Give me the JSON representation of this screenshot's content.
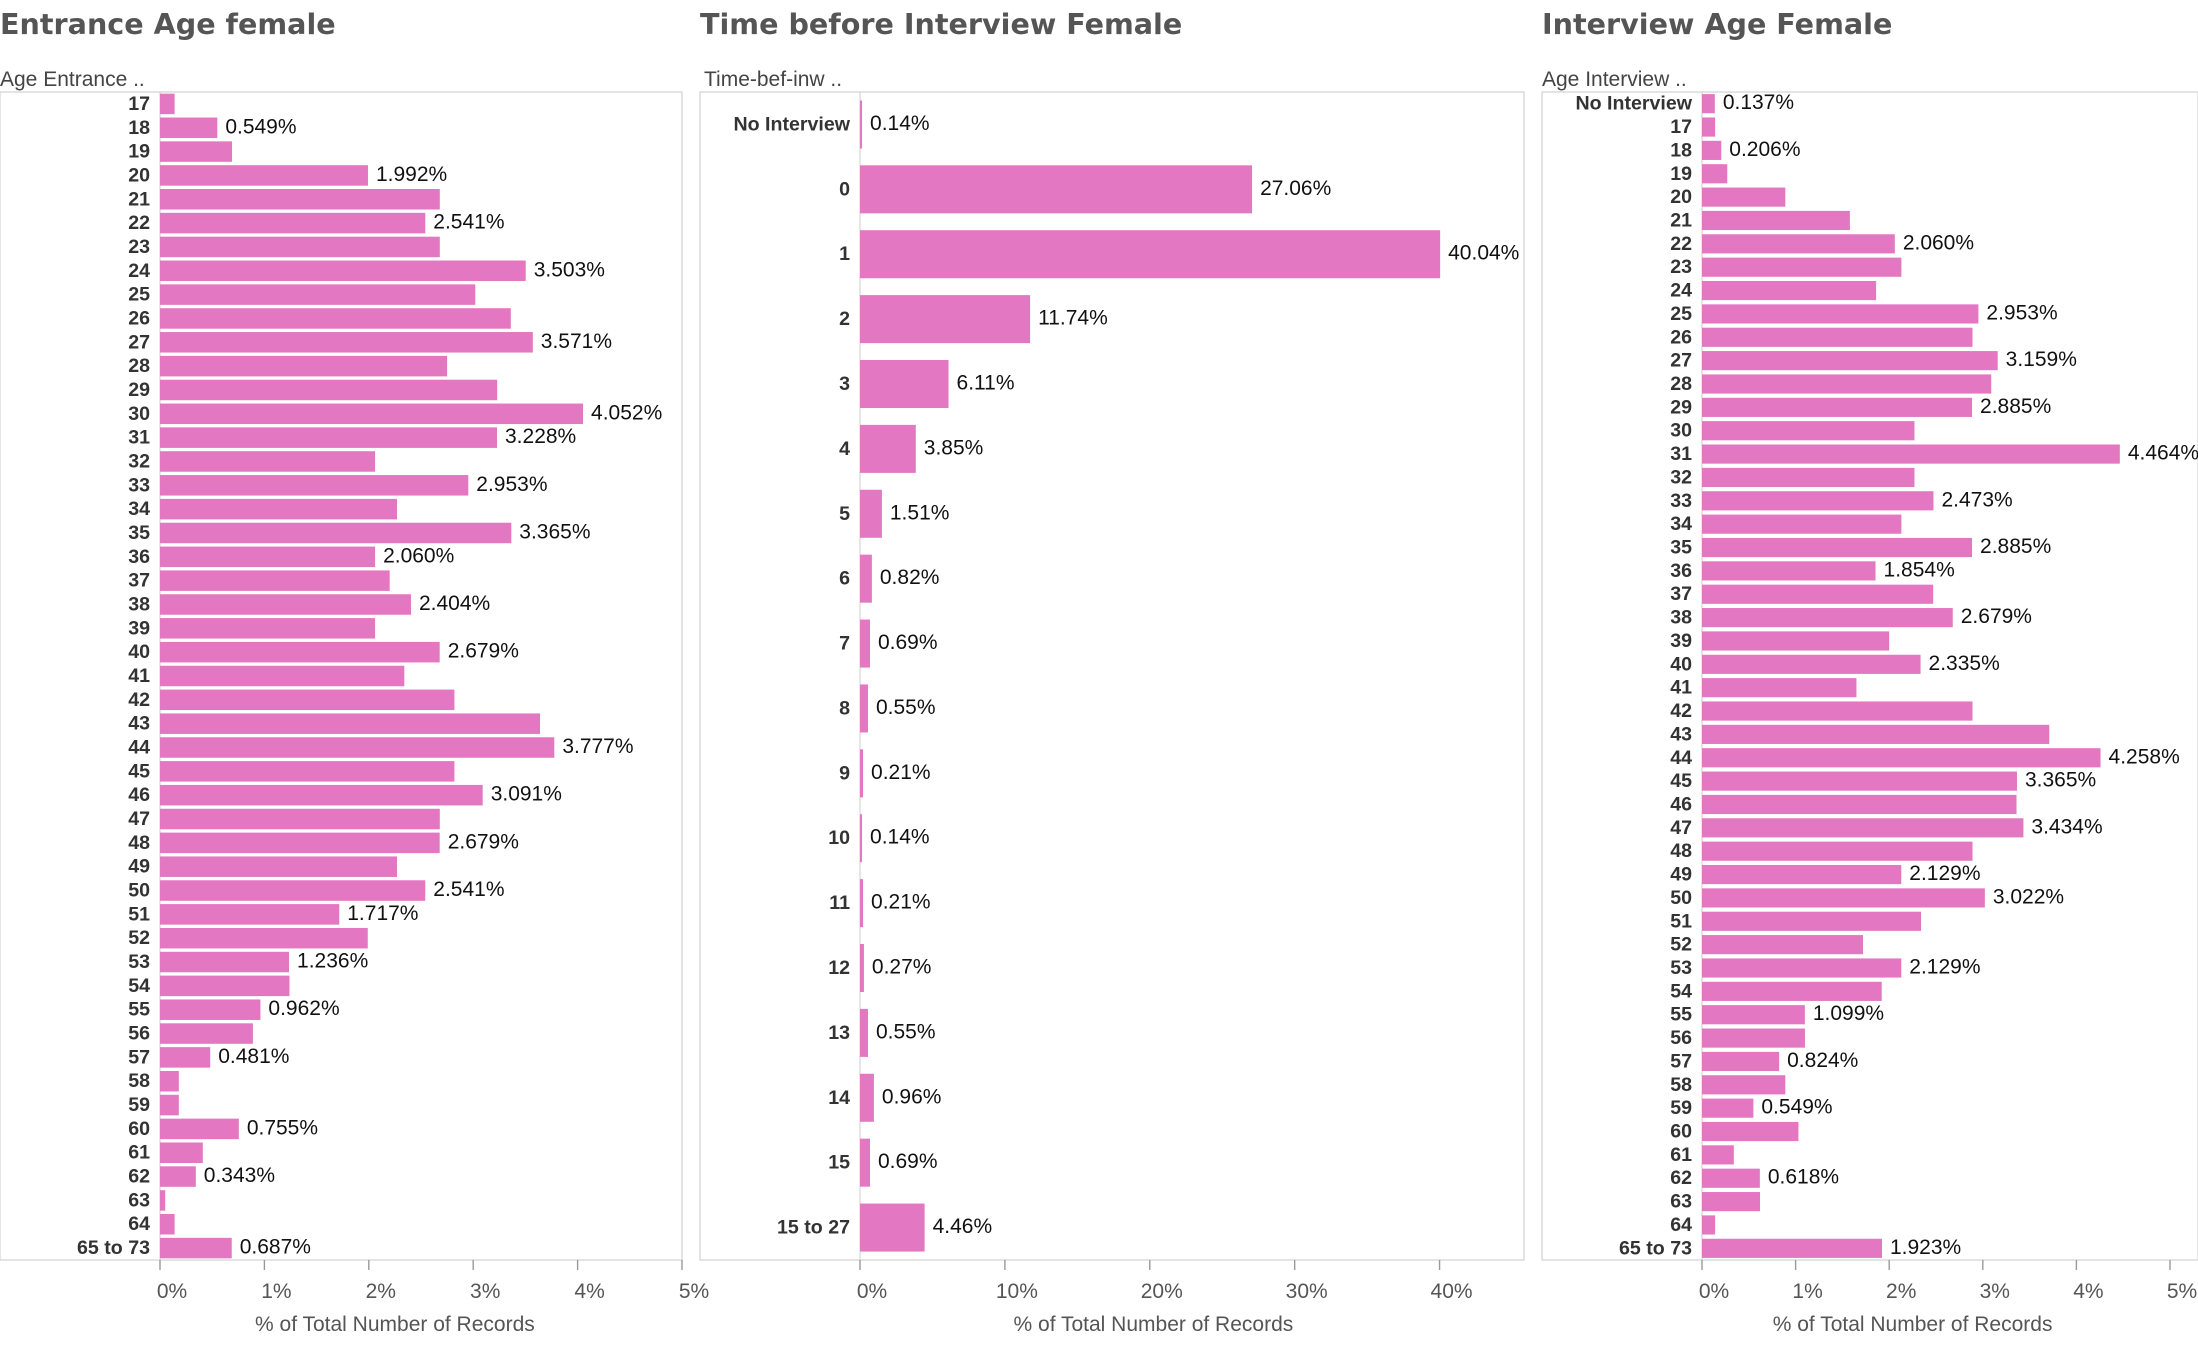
{
  "chart_data": [
    {
      "type": "bar",
      "orientation": "horizontal",
      "title": "Entrance Age female",
      "row_header": "Age Entrance ..",
      "xlabel": "% of Total Number of Records",
      "xlim": [
        0,
        5
      ],
      "xticks": [
        0,
        1,
        2,
        3,
        4,
        5
      ],
      "tick_format": "{}%",
      "bar_color": "#e377c2",
      "categories": [
        "17",
        "18",
        "19",
        "20",
        "21",
        "22",
        "23",
        "24",
        "25",
        "26",
        "27",
        "28",
        "29",
        "30",
        "31",
        "32",
        "33",
        "34",
        "35",
        "36",
        "37",
        "38",
        "39",
        "40",
        "41",
        "42",
        "43",
        "44",
        "45",
        "46",
        "47",
        "48",
        "49",
        "50",
        "51",
        "52",
        "53",
        "54",
        "55",
        "56",
        "57",
        "58",
        "59",
        "60",
        "61",
        "62",
        "63",
        "64",
        "65 to 73"
      ],
      "values": [
        0.14,
        0.549,
        0.69,
        1.992,
        2.68,
        2.541,
        2.68,
        3.503,
        3.02,
        3.36,
        3.571,
        2.75,
        3.23,
        4.052,
        3.228,
        2.06,
        2.953,
        2.27,
        3.365,
        2.06,
        2.2,
        2.404,
        2.06,
        2.679,
        2.34,
        2.82,
        3.64,
        3.777,
        2.82,
        3.091,
        2.68,
        2.679,
        2.27,
        2.541,
        1.717,
        1.99,
        1.236,
        1.24,
        0.962,
        0.89,
        0.481,
        0.18,
        0.18,
        0.755,
        0.41,
        0.343,
        0.05,
        0.14,
        0.687
      ],
      "labels": [
        "",
        "0.549%",
        "",
        "1.992%",
        "",
        "2.541%",
        "",
        "3.503%",
        "",
        "",
        "3.571%",
        "",
        "",
        "4.052%",
        "3.228%",
        "",
        "2.953%",
        "",
        "3.365%",
        "2.060%",
        "",
        "2.404%",
        "",
        "2.679%",
        "",
        "",
        "",
        "3.777%",
        "",
        "3.091%",
        "",
        "2.679%",
        "",
        "2.541%",
        "1.717%",
        "",
        "1.236%",
        "",
        "0.962%",
        "",
        "0.481%",
        "",
        "",
        "0.755%",
        "",
        "0.343%",
        "",
        "",
        "0.687%"
      ]
    },
    {
      "type": "bar",
      "orientation": "horizontal",
      "title": "Time before Interview Female",
      "row_header": "Time-bef-inw ..",
      "xlabel": "% of Total Number of Records",
      "xlim": [
        0,
        45
      ],
      "xticks": [
        0,
        10,
        20,
        30,
        40
      ],
      "tick_format": "{}%",
      "bar_color": "#e377c2",
      "categories": [
        "No Interview",
        "0",
        "1",
        "2",
        "3",
        "4",
        "5",
        "6",
        "7",
        "8",
        "9",
        "10",
        "11",
        "12",
        "13",
        "14",
        "15",
        "15 to 27"
      ],
      "values": [
        0.14,
        27.06,
        40.04,
        11.74,
        6.11,
        3.85,
        1.51,
        0.82,
        0.69,
        0.55,
        0.21,
        0.14,
        0.21,
        0.27,
        0.55,
        0.96,
        0.69,
        4.46
      ],
      "labels": [
        "0.14%",
        "27.06%",
        "40.04%",
        "11.74%",
        "6.11%",
        "3.85%",
        "1.51%",
        "0.82%",
        "0.69%",
        "0.55%",
        "0.21%",
        "0.14%",
        "0.21%",
        "0.27%",
        "0.55%",
        "0.96%",
        "0.69%",
        "4.46%"
      ]
    },
    {
      "type": "bar",
      "orientation": "horizontal",
      "title": "Interview Age Female",
      "row_header": "Age Interview ..",
      "xlabel": "% of Total Number of Records",
      "xlim": [
        0,
        5
      ],
      "xticks": [
        0,
        1,
        2,
        3,
        4,
        5
      ],
      "tick_format": "{}%",
      "bar_color": "#e377c2",
      "categories": [
        "No Interview",
        "17",
        "18",
        "19",
        "20",
        "21",
        "22",
        "23",
        "24",
        "25",
        "26",
        "27",
        "28",
        "29",
        "30",
        "31",
        "32",
        "33",
        "34",
        "35",
        "36",
        "37",
        "38",
        "39",
        "40",
        "41",
        "42",
        "43",
        "44",
        "45",
        "46",
        "47",
        "48",
        "49",
        "50",
        "51",
        "52",
        "53",
        "54",
        "55",
        "56",
        "57",
        "58",
        "59",
        "60",
        "61",
        "62",
        "63",
        "64",
        "65 to 73"
      ],
      "values": [
        0.137,
        0.14,
        0.206,
        0.27,
        0.89,
        1.58,
        2.06,
        2.13,
        1.86,
        2.953,
        2.89,
        3.159,
        3.09,
        2.885,
        2.27,
        4.464,
        2.27,
        2.473,
        2.13,
        2.885,
        1.854,
        2.47,
        2.679,
        2.0,
        2.335,
        1.65,
        2.89,
        3.71,
        4.258,
        3.365,
        3.36,
        3.434,
        2.89,
        2.129,
        3.022,
        2.34,
        1.72,
        2.129,
        1.92,
        1.099,
        1.1,
        0.824,
        0.89,
        0.549,
        1.03,
        0.34,
        0.618,
        0.62,
        0.14,
        1.923
      ],
      "labels": [
        "0.137%",
        "",
        "0.206%",
        "",
        "",
        "",
        "2.060%",
        "",
        "",
        "2.953%",
        "",
        "3.159%",
        "",
        "2.885%",
        "",
        "4.464%",
        "",
        "2.473%",
        "",
        "2.885%",
        "1.854%",
        "",
        "2.679%",
        "",
        "2.335%",
        "",
        "",
        "",
        "4.258%",
        "3.365%",
        "",
        "3.434%",
        "",
        "2.129%",
        "3.022%",
        "",
        "",
        "2.129%",
        "",
        "1.099%",
        "",
        "0.824%",
        "",
        "0.549%",
        "",
        "",
        "0.618%",
        "",
        "",
        "1.923%"
      ]
    }
  ]
}
